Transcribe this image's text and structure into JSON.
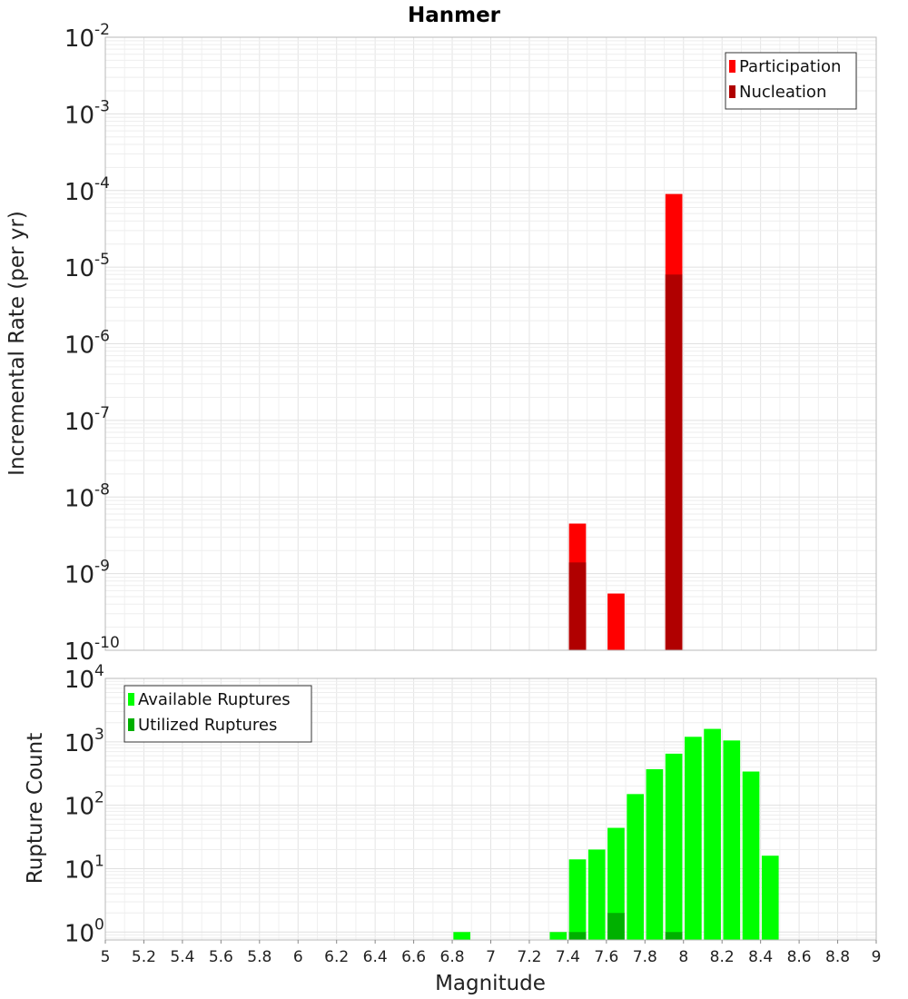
{
  "chart_data": [
    {
      "type": "bar",
      "title": "Hanmer",
      "xlabel": "",
      "ylabel": "Incremental Rate (per yr)",
      "y_scale": "log",
      "ylim": [
        1e-10,
        0.01
      ],
      "y_ticks": [
        {
          "base": "10",
          "exp": "-2",
          "value": 0.01
        },
        {
          "base": "10",
          "exp": "-3",
          "value": 0.001
        },
        {
          "base": "10",
          "exp": "-4",
          "value": 0.0001
        },
        {
          "base": "10",
          "exp": "-5",
          "value": 1e-05
        },
        {
          "base": "10",
          "exp": "-6",
          "value": 1e-06
        },
        {
          "base": "10",
          "exp": "-7",
          "value": 1e-07
        },
        {
          "base": "10",
          "exp": "-8",
          "value": 1e-08
        },
        {
          "base": "10",
          "exp": "-9",
          "value": 1e-09
        },
        {
          "base": "10",
          "exp": "-10",
          "value": 1e-10
        }
      ],
      "xlim": [
        5,
        9
      ],
      "grid": true,
      "legend_position": "top-right",
      "series": [
        {
          "name": "Participation",
          "color": "#ff0000",
          "points": [
            {
              "x": 7.45,
              "y": 4.5e-09
            },
            {
              "x": 7.65,
              "y": 5.5e-10
            },
            {
              "x": 7.95,
              "y": 9e-05
            }
          ]
        },
        {
          "name": "Nucleation",
          "color": "#b00000",
          "points": [
            {
              "x": 7.45,
              "y": 1.4e-09
            },
            {
              "x": 7.95,
              "y": 8e-06
            }
          ]
        }
      ]
    },
    {
      "type": "bar",
      "title": "",
      "xlabel": "Magnitude",
      "ylabel": "Rupture Count",
      "y_scale": "log",
      "ylim": [
        0.75,
        10000
      ],
      "y_ticks": [
        {
          "base": "10",
          "exp": "4",
          "value": 10000
        },
        {
          "base": "10",
          "exp": "3",
          "value": 1000
        },
        {
          "base": "10",
          "exp": "2",
          "value": 100
        },
        {
          "base": "10",
          "exp": "1",
          "value": 10
        },
        {
          "base": "10",
          "exp": "0",
          "value": 1
        }
      ],
      "xlim": [
        5,
        9
      ],
      "x_ticks": [
        "5",
        "5.2",
        "5.4",
        "5.6",
        "5.8",
        "6",
        "6.2",
        "6.4",
        "6.6",
        "6.8",
        "7",
        "7.2",
        "7.4",
        "7.6",
        "7.8",
        "8",
        "8.2",
        "8.4",
        "8.6",
        "8.8",
        "9"
      ],
      "grid": true,
      "legend_position": "top-left",
      "series": [
        {
          "name": "Available Ruptures",
          "color": "#00ff00",
          "points": [
            {
              "x": 6.85,
              "y": 1
            },
            {
              "x": 7.35,
              "y": 1
            },
            {
              "x": 7.45,
              "y": 14
            },
            {
              "x": 7.55,
              "y": 20
            },
            {
              "x": 7.65,
              "y": 44
            },
            {
              "x": 7.75,
              "y": 150
            },
            {
              "x": 7.85,
              "y": 370
            },
            {
              "x": 7.95,
              "y": 650
            },
            {
              "x": 8.05,
              "y": 1200
            },
            {
              "x": 8.15,
              "y": 1600
            },
            {
              "x": 8.25,
              "y": 1050
            },
            {
              "x": 8.35,
              "y": 340
            },
            {
              "x": 8.45,
              "y": 16
            }
          ]
        },
        {
          "name": "Utilized Ruptures",
          "color": "#00b000",
          "points": [
            {
              "x": 7.45,
              "y": 1
            },
            {
              "x": 7.65,
              "y": 2
            },
            {
              "x": 7.95,
              "y": 1
            }
          ]
        }
      ]
    }
  ]
}
